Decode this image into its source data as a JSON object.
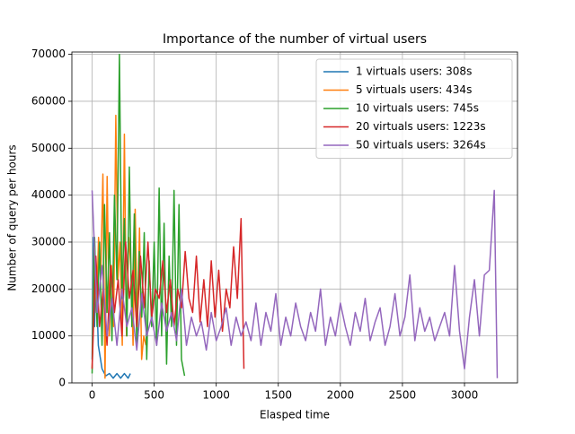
{
  "chart_data": {
    "type": "line",
    "title": "Importance of the number of virtual users",
    "xlabel": "Elasped time",
    "ylabel": "Number of query per hours",
    "xlim": [
      -163,
      3427
    ],
    "ylim": [
      0,
      70500
    ],
    "xticks": [
      0,
      500,
      1000,
      1500,
      2000,
      2500,
      3000
    ],
    "yticks": [
      0,
      10000,
      20000,
      30000,
      40000,
      50000,
      60000,
      70000
    ],
    "grid": true,
    "legend": "upper right",
    "series": [
      {
        "name": "1 virtuals users: 308s",
        "color": "#1f77b4",
        "x": [
          0,
          10,
          20,
          30,
          50,
          80,
          110,
          140,
          170,
          200,
          230,
          260,
          290,
          308
        ],
        "values": [
          5000,
          31000,
          12000,
          25000,
          8000,
          3000,
          1500,
          2000,
          1000,
          2000,
          1000,
          2000,
          1000,
          2000
        ]
      },
      {
        "name": "5 virtuals users: 434s",
        "color": "#ff7f0e",
        "x": [
          0,
          17,
          35,
          52,
          69,
          87,
          104,
          121,
          139,
          156,
          173,
          191,
          208,
          225,
          243,
          260,
          277,
          295,
          312,
          330,
          347,
          364,
          382,
          399,
          416,
          434
        ],
        "values": [
          3000,
          29000,
          15000,
          31000,
          22000,
          44500,
          1000,
          44000,
          10000,
          25000,
          12000,
          57000,
          22000,
          30000,
          8000,
          53000,
          10000,
          31000,
          25000,
          8000,
          37000,
          12000,
          33000,
          5000,
          10000,
          8000
        ]
      },
      {
        "name": "10 virtuals users: 745s",
        "color": "#2ca02c",
        "x": [
          0,
          20,
          40,
          60,
          80,
          100,
          120,
          140,
          160,
          180,
          200,
          220,
          240,
          260,
          280,
          300,
          320,
          340,
          360,
          380,
          400,
          420,
          440,
          460,
          480,
          500,
          520,
          540,
          560,
          580,
          600,
          620,
          640,
          660,
          680,
          700,
          720,
          745
        ],
        "values": [
          2000,
          31000,
          12000,
          30000,
          8000,
          38000,
          15000,
          32000,
          9000,
          40000,
          22000,
          70000,
          18000,
          35000,
          10000,
          46000,
          12000,
          36000,
          8000,
          28000,
          14000,
          32000,
          5000,
          26000,
          12000,
          30000,
          8000,
          41500,
          10000,
          34000,
          4000,
          27000,
          12000,
          41000,
          8000,
          38000,
          5000,
          1500
        ]
      },
      {
        "name": "20 virtuals users: 1223s",
        "color": "#d62728",
        "x": [
          0,
          30,
          60,
          90,
          120,
          150,
          180,
          210,
          240,
          270,
          300,
          330,
          360,
          390,
          420,
          450,
          480,
          510,
          540,
          570,
          600,
          630,
          660,
          690,
          720,
          750,
          780,
          810,
          840,
          870,
          900,
          930,
          960,
          990,
          1020,
          1050,
          1080,
          1110,
          1140,
          1170,
          1200,
          1223
        ],
        "values": [
          3000,
          27000,
          12000,
          20000,
          8000,
          25000,
          15000,
          22000,
          10000,
          30000,
          18000,
          24000,
          12000,
          27000,
          16000,
          30000,
          14000,
          20000,
          18000,
          26000,
          15000,
          22000,
          12000,
          20000,
          16000,
          28000,
          18000,
          15000,
          27000,
          13000,
          22000,
          12000,
          26000,
          14000,
          24000,
          11000,
          20000,
          16000,
          29000,
          18000,
          35000,
          3000
        ]
      },
      {
        "name": "50 virtuals users: 3264s",
        "color": "#9467bd",
        "x": [
          0,
          40,
          80,
          120,
          160,
          200,
          240,
          280,
          320,
          360,
          400,
          440,
          480,
          520,
          560,
          600,
          640,
          680,
          720,
          760,
          800,
          840,
          880,
          920,
          960,
          1000,
          1040,
          1080,
          1120,
          1160,
          1200,
          1240,
          1280,
          1320,
          1360,
          1400,
          1440,
          1480,
          1520,
          1560,
          1600,
          1640,
          1680,
          1720,
          1760,
          1800,
          1840,
          1880,
          1920,
          1960,
          2000,
          2040,
          2080,
          2120,
          2160,
          2200,
          2240,
          2280,
          2320,
          2360,
          2400,
          2440,
          2480,
          2520,
          2560,
          2600,
          2640,
          2680,
          2720,
          2760,
          2800,
          2840,
          2880,
          2920,
          2960,
          3000,
          3040,
          3080,
          3120,
          3160,
          3200,
          3240,
          3264
        ],
        "values": [
          41000,
          15000,
          25000,
          10000,
          18000,
          8000,
          20000,
          12000,
          16000,
          7000,
          19000,
          10000,
          14000,
          8000,
          17000,
          11000,
          15000,
          9000,
          20000,
          8000,
          14000,
          10000,
          13000,
          7000,
          15000,
          9000,
          12000,
          16000,
          8000,
          14000,
          10000,
          13000,
          9000,
          17000,
          8000,
          15000,
          11000,
          19000,
          8000,
          14000,
          10000,
          17000,
          12000,
          9000,
          15000,
          11000,
          20000,
          8000,
          14000,
          10000,
          17000,
          12000,
          8000,
          15000,
          11000,
          18000,
          9000,
          13000,
          16000,
          8000,
          12000,
          19000,
          10000,
          14000,
          23000,
          9000,
          16000,
          11000,
          14000,
          9000,
          12000,
          15000,
          10000,
          25000,
          11000,
          3000,
          14000,
          22000,
          10000,
          23000,
          24000,
          41000,
          1000
        ]
      }
    ]
  }
}
